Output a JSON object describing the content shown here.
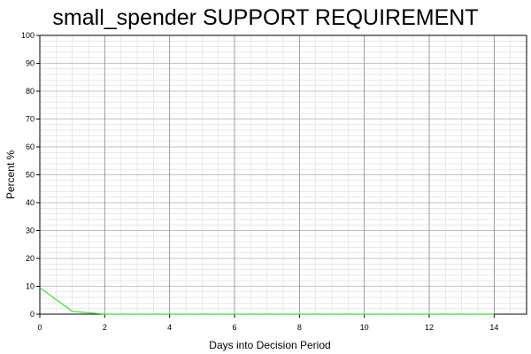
{
  "chart_data": {
    "type": "line",
    "title": "small_spender SUPPORT REQUIREMENT",
    "xlabel": "Days into Decision Period",
    "ylabel": "Percent %",
    "xlim": [
      0,
      15
    ],
    "ylim": [
      0,
      100
    ],
    "x_ticks": [
      "0",
      "2",
      "4",
      "6",
      "8",
      "10",
      "12",
      "14"
    ],
    "y_ticks": [
      "0",
      "10",
      "20",
      "30",
      "40",
      "50",
      "60",
      "70",
      "80",
      "90",
      "100"
    ],
    "grid": true,
    "series": [
      {
        "color": "#33dd33",
        "x": [
          0,
          1,
          2,
          3,
          4,
          5,
          6,
          7,
          8,
          9,
          10,
          11,
          12,
          13,
          14
        ],
        "y": [
          9.5,
          1,
          0,
          0,
          0,
          0,
          0,
          0,
          0,
          0,
          0,
          0,
          0,
          0,
          0
        ]
      }
    ]
  }
}
